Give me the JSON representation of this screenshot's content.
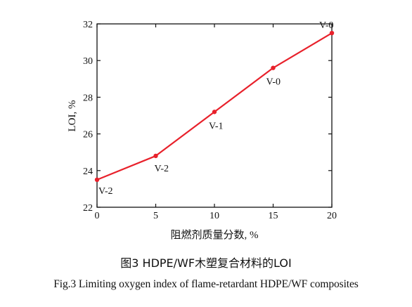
{
  "chart_data": {
    "type": "line",
    "xlabel": "阻燃剂质量分数, %",
    "ylabel": "LOI, %",
    "xlim": [
      0,
      20
    ],
    "ylim": [
      22,
      32
    ],
    "xticks": [
      0,
      5,
      10,
      15,
      20
    ],
    "yticks": [
      22,
      24,
      26,
      28,
      30,
      32
    ],
    "grid": false,
    "line_color": "#e8212b",
    "series": [
      {
        "x": [
          0,
          5,
          10,
          15,
          20
        ],
        "y": [
          23.5,
          24.8,
          27.2,
          29.6,
          31.5
        ],
        "labels": [
          "V-2",
          "V-2",
          "V-1",
          "V-0",
          "V-0"
        ]
      }
    ]
  },
  "caption": {
    "cn": "图3 HDPE/WF木塑复合材料的LOI",
    "en": "Fig.3 Limiting oxygen index of flame-retardant HDPE/WF composites"
  }
}
